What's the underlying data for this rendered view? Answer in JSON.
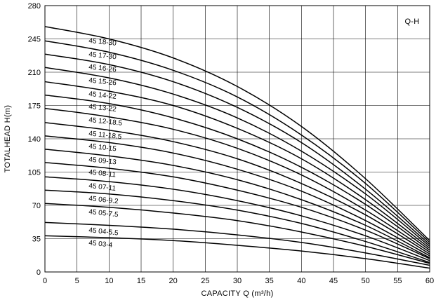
{
  "chart_data": {
    "type": "line",
    "title": "Q-H",
    "xlabel": "CAPACITY  Q (m³/h)",
    "ylabel": "TOTALHEAD  H(m)",
    "xlim": [
      0,
      60
    ],
    "ylim": [
      0,
      280
    ],
    "xticks": [
      0,
      5,
      10,
      15,
      20,
      25,
      30,
      35,
      40,
      45,
      50,
      55,
      60
    ],
    "yticks": [
      0,
      35,
      70,
      105,
      140,
      175,
      210,
      245,
      280
    ],
    "grid": true,
    "series": [
      {
        "name": "45 18-30",
        "x": [
          0,
          10,
          20,
          30,
          40,
          50,
          60
        ],
        "y": [
          258,
          245,
          225,
          195,
          153,
          98,
          33
        ]
      },
      {
        "name": "45 17-30",
        "x": [
          0,
          10,
          20,
          30,
          40,
          50,
          60
        ],
        "y": [
          243,
          231,
          212,
          184,
          144,
          93,
          31
        ]
      },
      {
        "name": "45 16-26",
        "x": [
          0,
          10,
          20,
          30,
          40,
          50,
          60
        ],
        "y": [
          229,
          218,
          200,
          173,
          136,
          87,
          29
        ]
      },
      {
        "name": "45 15-26",
        "x": [
          0,
          10,
          20,
          30,
          40,
          50,
          60
        ],
        "y": [
          215,
          204,
          187,
          162,
          127,
          82,
          27
        ]
      },
      {
        "name": "45 14-22",
        "x": [
          0,
          10,
          20,
          30,
          40,
          50,
          60
        ],
        "y": [
          200,
          190,
          175,
          151,
          119,
          76,
          25
        ]
      },
      {
        "name": "45 13-22",
        "x": [
          0,
          10,
          20,
          30,
          40,
          50,
          60
        ],
        "y": [
          186,
          177,
          162,
          140,
          110,
          71,
          23
        ]
      },
      {
        "name": "45 12-18.5",
        "x": [
          0,
          10,
          20,
          30,
          40,
          50,
          60
        ],
        "y": [
          172,
          163,
          150,
          130,
          102,
          65,
          21
        ]
      },
      {
        "name": "45 11-18.5",
        "x": [
          0,
          10,
          20,
          30,
          40,
          50,
          60
        ],
        "y": [
          157,
          149,
          137,
          119,
          93,
          60,
          19
        ]
      },
      {
        "name": "45 10-15",
        "x": [
          0,
          10,
          20,
          30,
          40,
          50,
          60
        ],
        "y": [
          143,
          136,
          125,
          108,
          85,
          54,
          17
        ]
      },
      {
        "name": "45 09-13",
        "x": [
          0,
          10,
          20,
          30,
          40,
          50,
          60
        ],
        "y": [
          129,
          122,
          112,
          97,
          76,
          49,
          15
        ]
      },
      {
        "name": "45 08-11",
        "x": [
          0,
          10,
          20,
          30,
          40,
          50,
          60
        ],
        "y": [
          115,
          109,
          100,
          86,
          68,
          44,
          14
        ]
      },
      {
        "name": "45 07-11",
        "x": [
          0,
          10,
          20,
          30,
          40,
          50,
          60
        ],
        "y": [
          100,
          95,
          87,
          75,
          59,
          38,
          12
        ]
      },
      {
        "name": "45 06-9.2",
        "x": [
          0,
          10,
          20,
          30,
          40,
          50,
          60
        ],
        "y": [
          86,
          82,
          75,
          65,
          51,
          32,
          10
        ]
      },
      {
        "name": "45 05-7.5",
        "x": [
          0,
          10,
          20,
          30,
          40,
          50,
          60
        ],
        "y": [
          72,
          68,
          62,
          54,
          42,
          27,
          9
        ]
      },
      {
        "name": "45 04-5.5",
        "x": [
          0,
          10,
          20,
          30,
          40,
          50,
          60
        ],
        "y": [
          52,
          49,
          45,
          39,
          31,
          20,
          7
        ]
      },
      {
        "name": "45 03-4",
        "x": [
          0,
          10,
          20,
          30,
          40,
          50,
          60
        ],
        "y": [
          38,
          36,
          33,
          28,
          22,
          14,
          4
        ]
      }
    ]
  }
}
